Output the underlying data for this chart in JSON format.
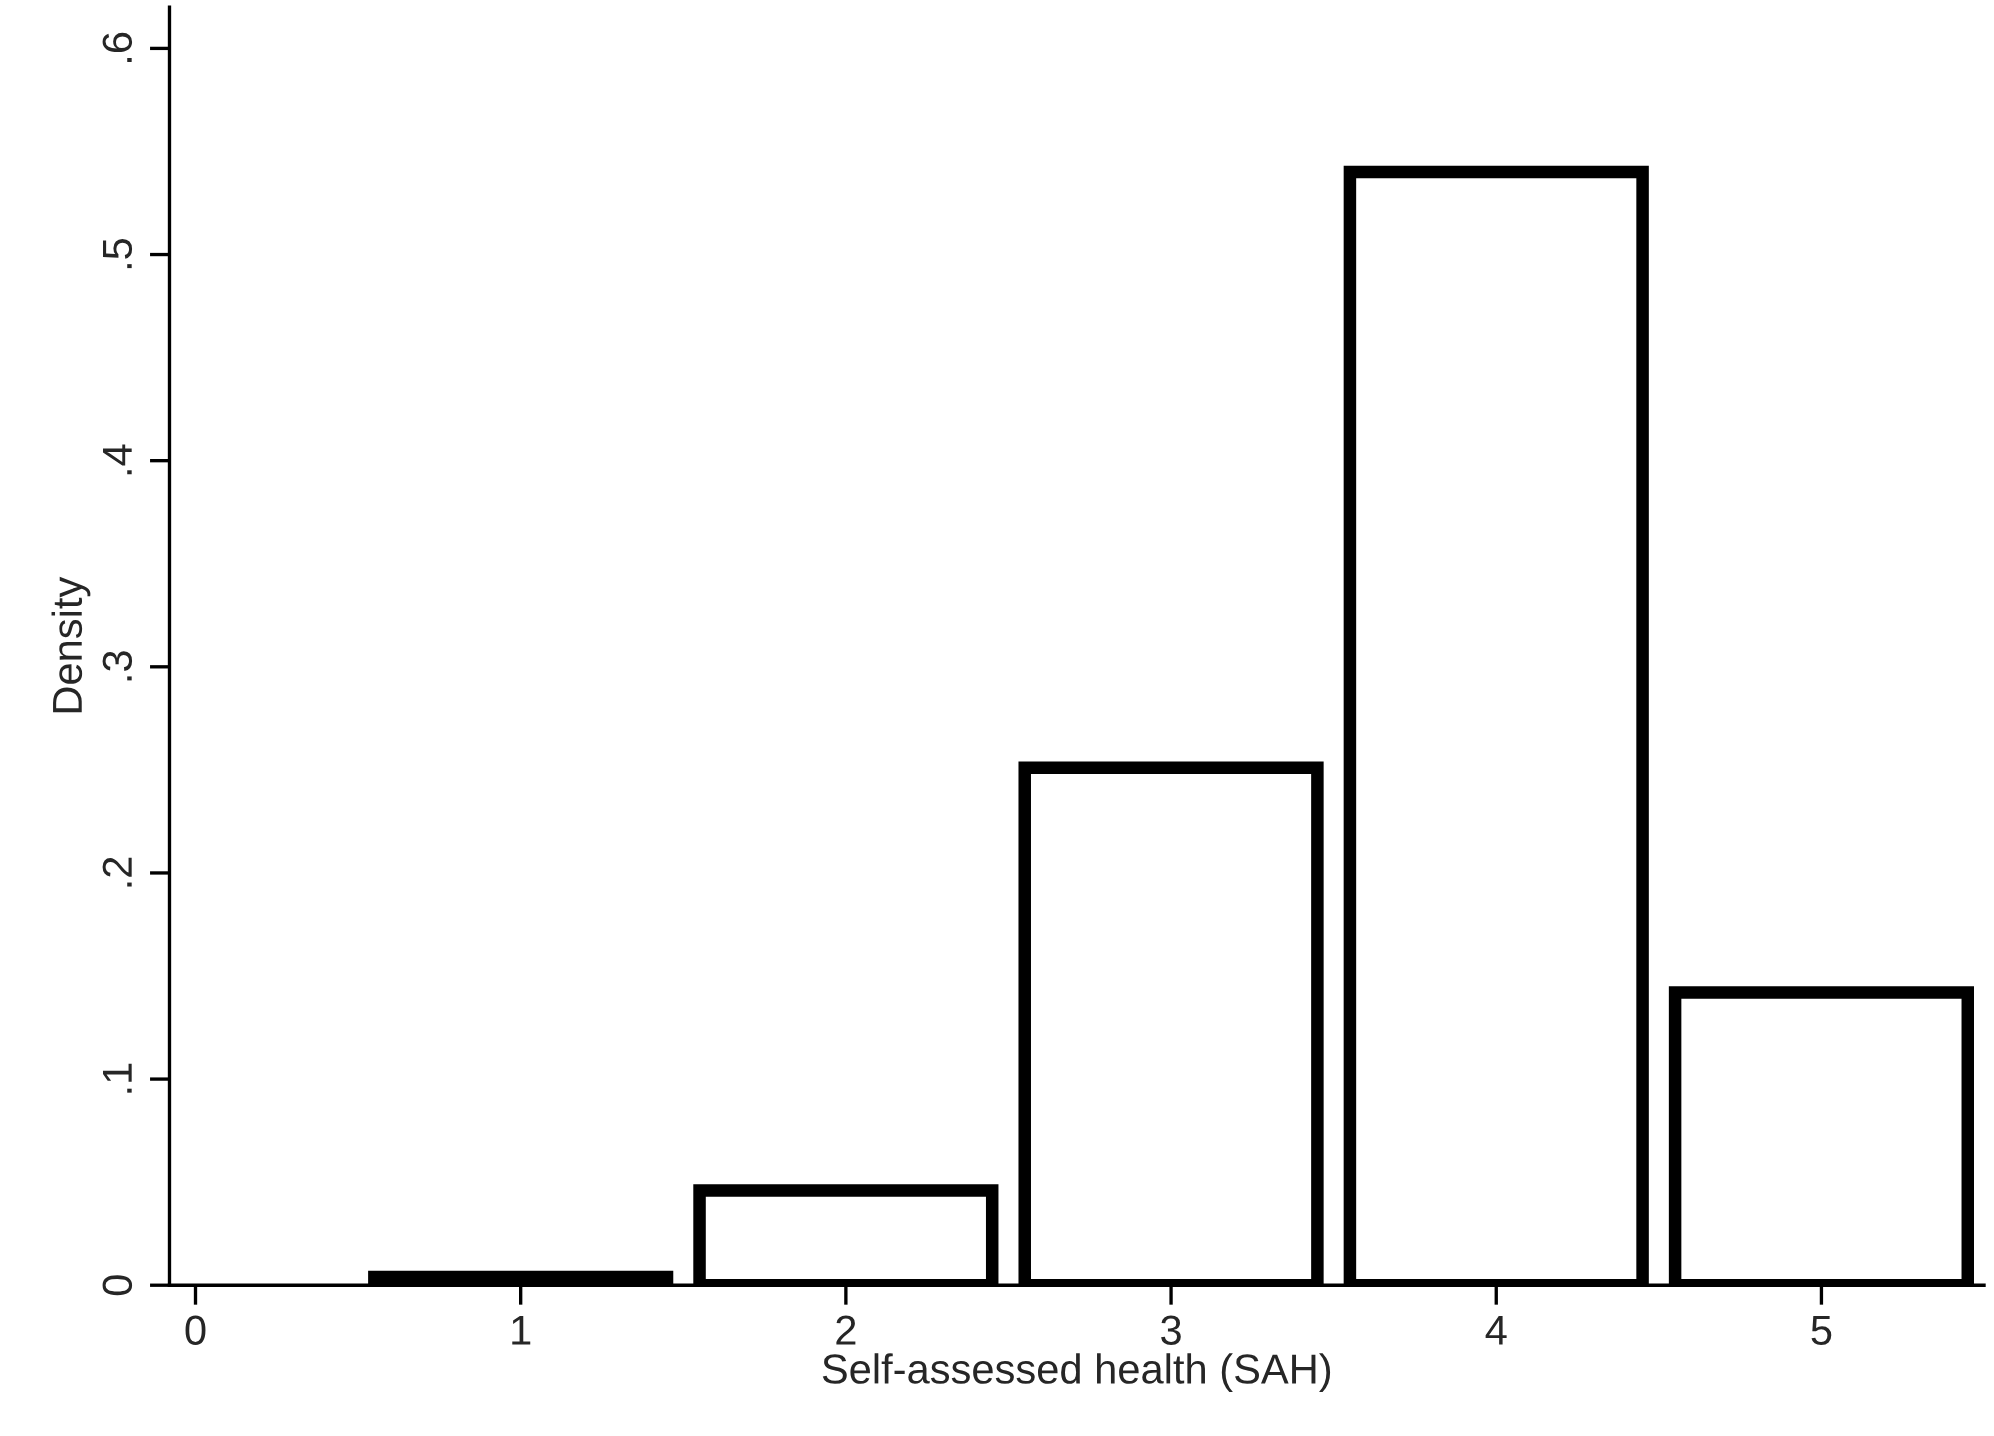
{
  "chart_data": {
    "type": "histogram",
    "xlabel": "Self-assessed health (SAH)",
    "ylabel": "Density",
    "bins": [
      0.5,
      1.5,
      2.5,
      3.5,
      4.5,
      5.5
    ],
    "values": [
      0.004,
      0.046,
      0.251,
      0.54,
      0.142
    ],
    "color": "#000000",
    "xlim": [
      -0.08,
      5.5
    ],
    "xticks": [
      0,
      1,
      2,
      3,
      4,
      5
    ],
    "ylim": [
      0,
      0.62
    ],
    "yticks": [
      {
        "value": 0,
        "label": "0"
      },
      {
        "value": 0.1,
        "label": ".1"
      },
      {
        "value": 0.2,
        "label": ".2"
      },
      {
        "value": 0.3,
        "label": ".3"
      },
      {
        "value": 0.4,
        "label": ".4"
      },
      {
        "value": 0.5,
        "label": ".5"
      },
      {
        "value": 0.6,
        "label": ".6"
      }
    ],
    "grid": false
  }
}
